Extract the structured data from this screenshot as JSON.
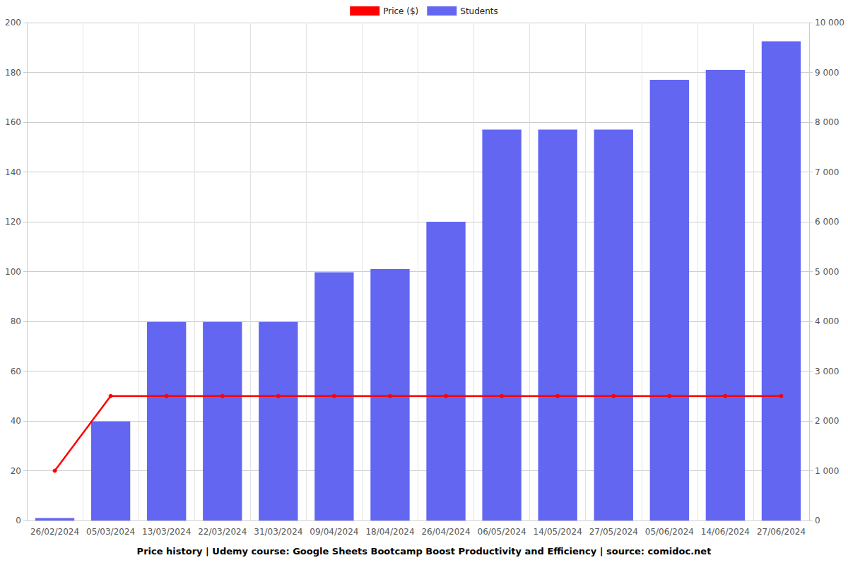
{
  "chart_data": {
    "type": "bar",
    "title": "Price history | Udemy course: Google Sheets Bootcamp Boost Productivity and Efficiency | source: comidoc.net",
    "categories": [
      "26/02/2024",
      "05/03/2024",
      "13/03/2024",
      "22/03/2024",
      "31/03/2024",
      "09/04/2024",
      "18/04/2024",
      "26/04/2024",
      "06/05/2024",
      "14/05/2024",
      "27/05/2024",
      "05/06/2024",
      "14/06/2024",
      "27/06/2024"
    ],
    "series": [
      {
        "name": "Price ($)",
        "type": "line",
        "color": "#ff0000",
        "marker": "circle",
        "line_style": "solid",
        "values": [
          20,
          50,
          50,
          50,
          50,
          50,
          50,
          50,
          50,
          50,
          50,
          50,
          50,
          50
        ]
      },
      {
        "name": "Students",
        "type": "bar",
        "axis": "y2",
        "color": "#6366f1",
        "values": [
          50,
          1990,
          3990,
          3990,
          3990,
          4985,
          5050,
          6000,
          7850,
          7850,
          7850,
          8850,
          9050,
          9625
        ]
      }
    ],
    "ylim": [
      0,
      200
    ],
    "yticks": [
      0,
      20,
      40,
      60,
      80,
      100,
      120,
      140,
      160,
      180,
      200
    ],
    "y2lim": [
      0,
      10000
    ],
    "y2ticks": [
      0,
      {
        "value": 1000,
        "label": "1 000"
      },
      {
        "value": 2000,
        "label": "2 000"
      },
      {
        "value": 3000,
        "label": "3 000"
      },
      {
        "value": 4000,
        "label": "4 000"
      },
      {
        "value": 5000,
        "label": "5 000"
      },
      {
        "value": 6000,
        "label": "6 000"
      },
      {
        "value": 7000,
        "label": "7 000"
      },
      {
        "value": 8000,
        "label": "8 000"
      },
      {
        "value": 9000,
        "label": "9 000"
      },
      {
        "value": 10000,
        "label": "10 000"
      }
    ],
    "grid": true,
    "legend": "top"
  }
}
